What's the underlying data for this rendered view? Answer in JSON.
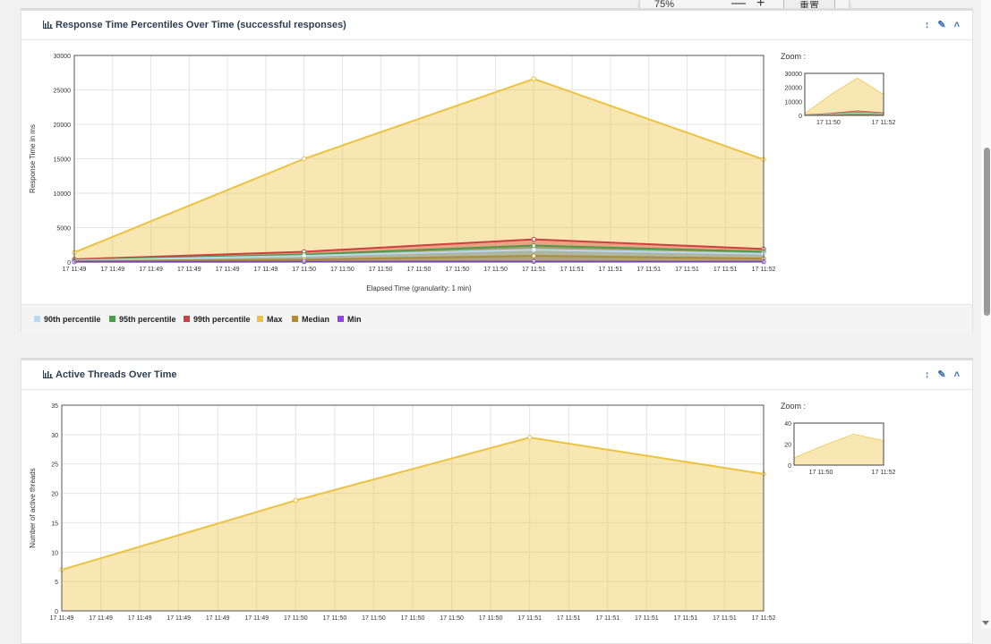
{
  "popup": {
    "zoom_level": "75%",
    "minus": "—",
    "plus": "+",
    "reset_label": "重置"
  },
  "toolbar_icons": [
    "resize-vertical-icon",
    "wrench-icon",
    "collapse-chevron-icon"
  ],
  "panel1": {
    "title": "Response Time Percentiles Over Time (successful responses)",
    "zoom_label": "Zoom :",
    "legend": [
      {
        "name": "90th percentile",
        "color": "#b9d8f2"
      },
      {
        "name": "95th percentile",
        "color": "#4d9a4a"
      },
      {
        "name": "99th percentile",
        "color": "#cc3f3f"
      },
      {
        "name": "Max",
        "color": "#edc240"
      },
      {
        "name": "Median",
        "color": "#af8b34"
      },
      {
        "name": "Min",
        "color": "#9440ed"
      }
    ]
  },
  "panel2": {
    "title": "Active Threads Over Time",
    "zoom_label": "Zoom :"
  },
  "chart_data": [
    {
      "type": "area",
      "title": "Response Time Percentiles Over Time (successful responses)",
      "xlabel": "Elapsed Time (granularity: 1 min)",
      "ylabel": "Response Time in ms",
      "ylim": [
        0,
        30000
      ],
      "yticks": [
        0,
        5000,
        10000,
        15000,
        20000,
        25000,
        30000
      ],
      "xticks": [
        "17 11:49",
        "17 11:49",
        "17 11:49",
        "17 11:49",
        "17 11:49",
        "17 11:49",
        "17 11:50",
        "17 11:50",
        "17 11:50",
        "17 11:50",
        "17 11:50",
        "17 11:50",
        "17 11:51",
        "17 11:51",
        "17 11:51",
        "17 11:51",
        "17 11:51",
        "17 11:51",
        "17 11:52"
      ],
      "x": [
        "17 11:49",
        "17 11:50",
        "17 11:51",
        "17 11:52"
      ],
      "series": [
        {
          "name": "Max",
          "color": "#edc240",
          "values": [
            1400,
            15000,
            26600,
            14900
          ]
        },
        {
          "name": "99th percentile",
          "color": "#cc3f3f",
          "values": [
            400,
            1500,
            3300,
            1900
          ]
        },
        {
          "name": "95th percentile",
          "color": "#4d9a4a",
          "values": [
            300,
            1100,
            2400,
            1500
          ]
        },
        {
          "name": "90th percentile",
          "color": "#b9d8f2",
          "values": [
            250,
            900,
            1800,
            1200
          ]
        },
        {
          "name": "Median",
          "color": "#af8b34",
          "values": [
            150,
            350,
            900,
            500
          ]
        },
        {
          "name": "Min",
          "color": "#9440ed",
          "values": [
            50,
            60,
            80,
            60
          ]
        }
      ],
      "zoom": {
        "yticks": [
          0,
          10000,
          20000,
          30000
        ],
        "xticks": [
          "17 11:50",
          "17 11:52"
        ]
      },
      "legend_position": "bottom"
    },
    {
      "type": "area",
      "title": "Active Threads Over Time",
      "xlabel": "",
      "ylabel": "Number of active threads",
      "ylim": [
        0,
        35
      ],
      "yticks": [
        0,
        5,
        10,
        15,
        20,
        25,
        30,
        35
      ],
      "xticks": [
        "17 11:49",
        "17 11:49",
        "17 11:49",
        "17 11:49",
        "17 11:49",
        "17 11:49",
        "17 11:50",
        "17 11:50",
        "17 11:50",
        "17 11:50",
        "17 11:50",
        "17 11:50",
        "17 11:51",
        "17 11:51",
        "17 11:51",
        "17 11:51",
        "17 11:51",
        "17 11:51",
        "17 11:52"
      ],
      "x": [
        "17 11:49",
        "17 11:50",
        "17 11:51",
        "17 11:52"
      ],
      "series": [
        {
          "name": "",
          "color": "#edc240",
          "values": [
            7,
            18.8,
            29.5,
            23.3
          ]
        }
      ],
      "zoom": {
        "yticks": [
          0,
          20,
          40
        ],
        "xticks": [
          "17 11:50",
          "17 11:52"
        ]
      }
    }
  ]
}
